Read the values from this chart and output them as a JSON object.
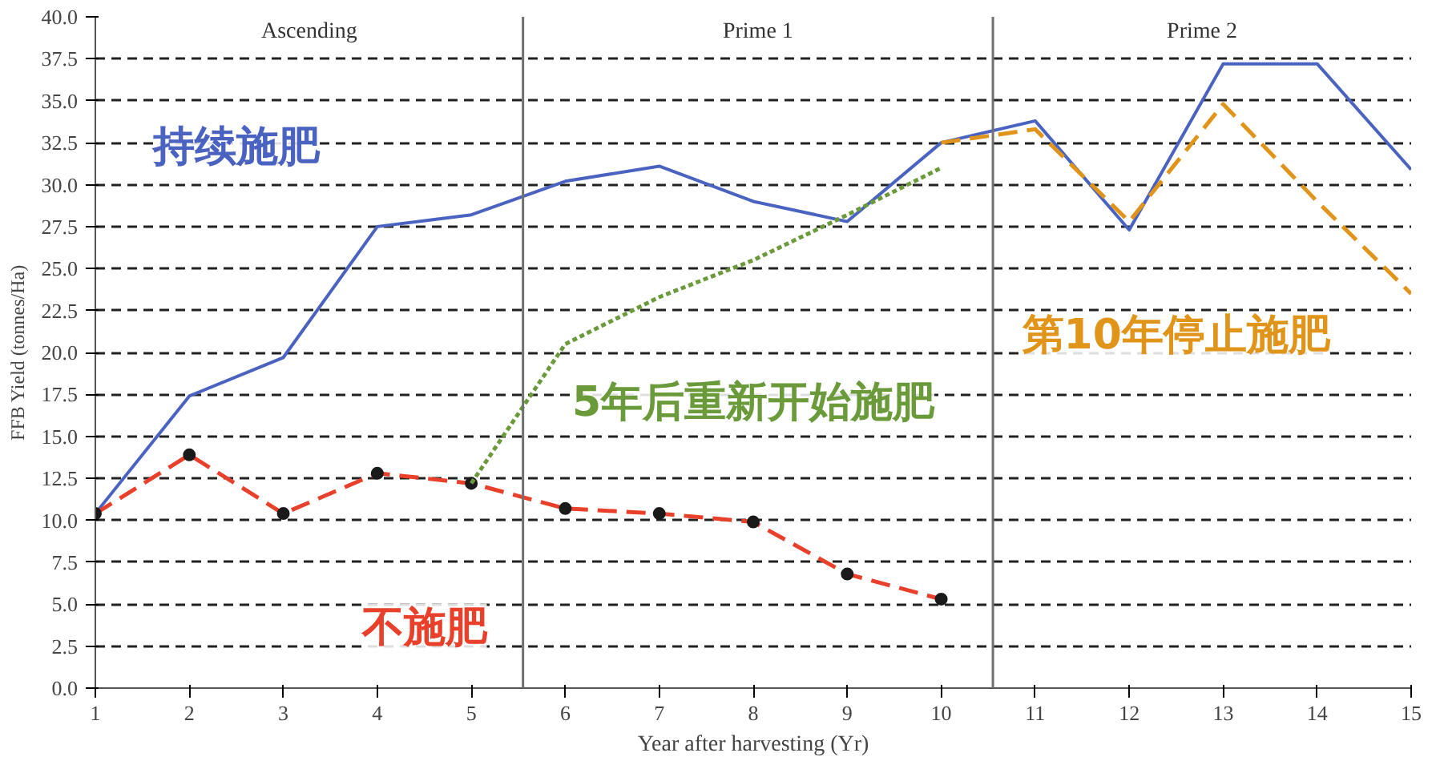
{
  "chart_data": {
    "type": "line",
    "xlabel": "Year after harvesting (Yr)",
    "ylabel": "FFB Yield (tonnes/Ha)",
    "xlim": [
      1,
      15
    ],
    "xticks": [
      1,
      2,
      3,
      4,
      5,
      6,
      7,
      8,
      9,
      10,
      11,
      12,
      13,
      14,
      15
    ],
    "ylim": [
      0,
      40
    ],
    "yticks": [
      {
        "value": 0,
        "label": "0.0"
      },
      {
        "value": 2.5,
        "label": "2.5"
      },
      {
        "value": 5,
        "label": "5.0"
      },
      {
        "value": 7.5,
        "label": "7.5"
      },
      {
        "value": 10,
        "label": "10.0"
      },
      {
        "value": 12.5,
        "label": "12.5"
      },
      {
        "value": 15,
        "label": "15.0"
      },
      {
        "value": 17.5,
        "label": "17.5"
      },
      {
        "value": 20,
        "label": "20.0"
      },
      {
        "value": 22.5,
        "label": "22.5"
      },
      {
        "value": 25,
        "label": "25.0"
      },
      {
        "value": 27.5,
        "label": "27.5"
      },
      {
        "value": 30,
        "label": "30.0"
      },
      {
        "value": 32.5,
        "label": "32.5"
      },
      {
        "value": 35,
        "label": "35.0"
      },
      {
        "value": 37.5,
        "label": "37.5"
      },
      {
        "value": 40,
        "label": "40.0"
      }
    ],
    "grid": "y",
    "series": [
      {
        "name": "持续施肥",
        "color": "#4a62c0",
        "line_style": "solid",
        "marker": "none",
        "x": [
          1,
          2,
          3,
          4,
          5,
          6,
          7,
          8,
          9,
          10,
          11,
          12,
          13,
          14,
          15
        ],
        "values": [
          10.4,
          17.4,
          19.7,
          27.5,
          28.2,
          30.2,
          31.1,
          29.0,
          27.8,
          32.5,
          33.8,
          27.3,
          37.2,
          37.2,
          30.9
        ]
      },
      {
        "name": "不施肥",
        "color": "#e8402a",
        "line_style": "dashed",
        "marker": "circle",
        "x": [
          1,
          2,
          3,
          4,
          5,
          6,
          7,
          8,
          9,
          10
        ],
        "values": [
          10.4,
          13.9,
          10.4,
          12.8,
          12.2,
          10.7,
          10.4,
          9.9,
          6.8,
          5.3
        ]
      },
      {
        "name": "5年后重新开始施肥",
        "color": "#6a9a3a",
        "line_style": "dotted",
        "marker": "none",
        "x": [
          5,
          6,
          7,
          8,
          9,
          10
        ],
        "values": [
          12.2,
          20.5,
          23.3,
          25.5,
          28.2,
          31.0
        ]
      },
      {
        "name": "第10年停止施肥",
        "color": "#e0951a",
        "line_style": "dashed",
        "marker": "none",
        "x": [
          10,
          11,
          12,
          13,
          14,
          15
        ],
        "values": [
          32.5,
          33.3,
          27.8,
          34.8,
          29.0,
          23.5
        ]
      }
    ],
    "ref_lines": [
      {
        "axis": "x",
        "value": 5.55,
        "color": "#707070"
      },
      {
        "axis": "x",
        "value": 10.55,
        "color": "#707070"
      }
    ],
    "annotations": [
      "Ascending",
      "Prime 1",
      "Prime 2"
    ]
  }
}
